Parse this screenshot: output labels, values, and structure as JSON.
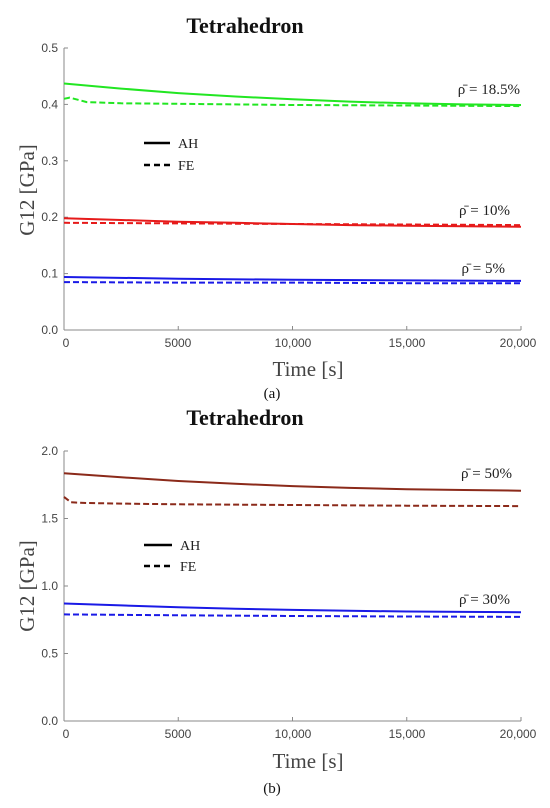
{
  "chart_data": [
    {
      "type": "line",
      "panel_label": "(a)",
      "title": "Tetrahedron",
      "xlabel": "Time [s]",
      "ylabel": "G12 [GPa]",
      "xlim": [
        0,
        20000
      ],
      "ylim": [
        0.0,
        0.5
      ],
      "x_ticks": [
        "0",
        "5000",
        "10,000",
        "15,000",
        "20,000"
      ],
      "y_ticks": [
        "0.0",
        "0.1",
        "0.2",
        "0.3",
        "0.4",
        "0.5"
      ],
      "grid": false,
      "legend": {
        "placement": "upper-left",
        "entries": [
          {
            "label": "AH",
            "style": "solid"
          },
          {
            "label": "FE",
            "style": "dashed"
          }
        ]
      },
      "annotations": [
        "ρ̄ = 18.5%",
        "ρ̄ = 10%",
        "ρ̄ = 5%"
      ],
      "series": [
        {
          "group": "18.5%",
          "method": "AH",
          "style": "solid",
          "color": "#22e622",
          "x": [
            0,
            2500,
            5000,
            7500,
            10000,
            12500,
            15000,
            17500,
            20000
          ],
          "values": [
            0.437,
            0.428,
            0.42,
            0.414,
            0.409,
            0.405,
            0.402,
            0.4,
            0.399
          ]
        },
        {
          "group": "18.5%",
          "method": "FE",
          "style": "dashed",
          "color": "#22e622",
          "x": [
            0,
            250,
            1000,
            2500,
            5000,
            10000,
            15000,
            20000
          ],
          "values": [
            0.41,
            0.412,
            0.404,
            0.402,
            0.401,
            0.399,
            0.398,
            0.397
          ]
        },
        {
          "group": "10%",
          "method": "AH",
          "style": "solid",
          "color": "#e61a1a",
          "x": [
            0,
            2500,
            5000,
            7500,
            10000,
            12500,
            15000,
            17500,
            20000
          ],
          "values": [
            0.198,
            0.195,
            0.192,
            0.19,
            0.188,
            0.186,
            0.185,
            0.184,
            0.183
          ]
        },
        {
          "group": "10%",
          "method": "FE",
          "style": "dashed",
          "color": "#e61a1a",
          "x": [
            0,
            5000,
            10000,
            15000,
            20000
          ],
          "values": [
            0.19,
            0.189,
            0.188,
            0.187,
            0.186
          ]
        },
        {
          "group": "5%",
          "method": "AH",
          "style": "solid",
          "color": "#1a1ae6",
          "x": [
            0,
            5000,
            10000,
            15000,
            20000
          ],
          "values": [
            0.094,
            0.091,
            0.089,
            0.088,
            0.087
          ]
        },
        {
          "group": "5%",
          "method": "FE",
          "style": "dashed",
          "color": "#1a1ae6",
          "x": [
            0,
            5000,
            10000,
            15000,
            20000
          ],
          "values": [
            0.085,
            0.084,
            0.084,
            0.083,
            0.083
          ]
        }
      ]
    },
    {
      "type": "line",
      "panel_label": "(b)",
      "title": "Tetrahedron",
      "xlabel": "Time [s]",
      "ylabel": "G12 [GPa]",
      "xlim": [
        0,
        20000
      ],
      "ylim": [
        0.0,
        2.0
      ],
      "x_ticks": [
        "0",
        "5000",
        "10,000",
        "15,000",
        "20,000"
      ],
      "y_ticks": [
        "0.0",
        "0.5",
        "1.0",
        "1.5",
        "2.0"
      ],
      "grid": false,
      "legend": {
        "placement": "middle-left",
        "entries": [
          {
            "label": "AH",
            "style": "solid"
          },
          {
            "label": "FE",
            "style": "dashed"
          }
        ]
      },
      "annotations": [
        "ρ̄ = 50%",
        "ρ̄ = 30%"
      ],
      "series": [
        {
          "group": "50%",
          "method": "AH",
          "style": "solid",
          "color": "#8b2a1a",
          "x": [
            0,
            2500,
            5000,
            7500,
            10000,
            12500,
            15000,
            17500,
            20000
          ],
          "values": [
            1.835,
            1.805,
            1.778,
            1.757,
            1.74,
            1.727,
            1.717,
            1.711,
            1.706
          ]
        },
        {
          "group": "50%",
          "method": "FE",
          "style": "dashed",
          "color": "#8b2a1a",
          "x": [
            0,
            300,
            1000,
            2500,
            5000,
            10000,
            15000,
            20000
          ],
          "values": [
            1.66,
            1.62,
            1.615,
            1.61,
            1.605,
            1.6,
            1.595,
            1.592
          ]
        },
        {
          "group": "30%",
          "method": "AH",
          "style": "solid",
          "color": "#1a1ae6",
          "x": [
            0,
            2500,
            5000,
            7500,
            10000,
            12500,
            15000,
            17500,
            20000
          ],
          "values": [
            0.87,
            0.856,
            0.843,
            0.832,
            0.823,
            0.816,
            0.811,
            0.808,
            0.806
          ]
        },
        {
          "group": "30%",
          "method": "FE",
          "style": "dashed",
          "color": "#1a1ae6",
          "x": [
            0,
            5000,
            10000,
            15000,
            20000
          ],
          "values": [
            0.79,
            0.783,
            0.778,
            0.774,
            0.771
          ]
        }
      ]
    }
  ]
}
